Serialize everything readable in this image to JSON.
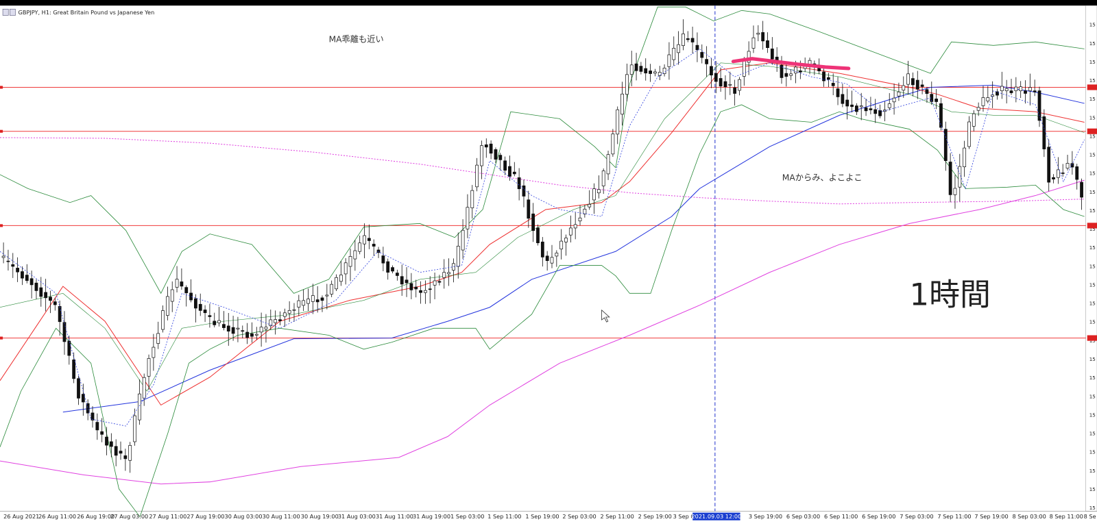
{
  "window": {
    "title": "GBPJPY, H1:  Great Britain Pound vs Japanese Yen"
  },
  "annotations": [
    "MA乖離も近い",
    "MAからみ、よこよこ",
    "1時間"
  ],
  "cursor_time": "2021.09.03 12:00",
  "x_labels": [
    "26 Aug 2021",
    "26 Aug 11:00",
    "26 Aug 19:00",
    "27 Aug 03:00",
    "27 Aug 11:00",
    "27 Aug 19:00",
    "30 Aug 03:00",
    "30 Aug 11:00",
    "30 Aug 19:00",
    "31 Aug 03:00",
    "31 Aug 11:00",
    "31 Aug 19:00",
    "1 Sep 03:00",
    "1 Sep 11:00",
    "1 Sep 19:00",
    "2 Sep 03:00",
    "2 Sep 11:00",
    "2 Sep 19:00",
    "3 Sep 0",
    "3 Sep 19:00",
    "6 Sep 03:00",
    "6 Sep 11:00",
    "6 Sep 19:00",
    "7 Sep 03:00",
    "7 Sep 11:00",
    "7 Sep 19:00",
    "8 Sep 03:00",
    "8 Sep 11:00",
    "8 Se"
  ],
  "y_labels": [
    "15",
    "15",
    "15",
    "15",
    "15",
    "15",
    "15",
    "15",
    "15",
    "15",
    "15",
    "15",
    "15",
    "15",
    "15",
    "15",
    "15",
    "15",
    "15",
    "15",
    "15",
    "15",
    "15",
    "15",
    "15",
    "15",
    "15"
  ]
}
